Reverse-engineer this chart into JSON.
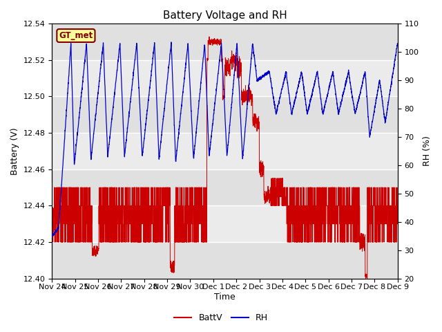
{
  "title": "Battery Voltage and RH",
  "xlabel": "Time",
  "ylabel_left": "Battery (V)",
  "ylabel_right": "RH (%)",
  "ylim_left": [
    12.4,
    12.54
  ],
  "ylim_right": [
    20,
    110
  ],
  "yticks_left": [
    12.4,
    12.42,
    12.44,
    12.46,
    12.48,
    12.5,
    12.52,
    12.54
  ],
  "yticks_right": [
    20,
    30,
    40,
    50,
    60,
    70,
    80,
    90,
    100,
    110
  ],
  "xtick_labels": [
    "Nov 24",
    "Nov 25",
    "Nov 26",
    "Nov 27",
    "Nov 28",
    "Nov 29",
    "Nov 30",
    "Dec 1",
    "Dec 2",
    "Dec 3",
    "Dec 4",
    "Dec 5",
    "Dec 6",
    "Dec 7",
    "Dec 8",
    "Dec 9"
  ],
  "battv_color": "#cc0000",
  "rh_color": "#0000cc",
  "bg_color": "#ffffff",
  "plot_bg_color": "#f0f0f0",
  "grid_color": "#ffffff",
  "legend_label_battv": "BattV",
  "legend_label_rh": "RH",
  "station_label": "GT_met",
  "station_label_color": "#800000",
  "station_box_color": "#ffff99",
  "title_fontsize": 11,
  "axis_fontsize": 9,
  "tick_fontsize": 8,
  "legend_fontsize": 9,
  "band_colors": [
    "#e8e8e8",
    "#d8d8d8"
  ],
  "rh_cycle_days": [
    0.0,
    0.3,
    0.85,
    1.0,
    1.55,
    1.75,
    2.3,
    2.5,
    3.05,
    3.25,
    3.8,
    4.05,
    4.6,
    4.8,
    5.35,
    5.55,
    6.1,
    6.35,
    6.85,
    7.05,
    7.6,
    7.85,
    8.3,
    8.55,
    9.0,
    9.2,
    9.75,
    10.05,
    10.5,
    10.75,
    11.2,
    11.45,
    11.9,
    12.15,
    12.6,
    12.85,
    13.3,
    13.6,
    14.05,
    14.25,
    14.7,
    14.95,
    15.5
  ],
  "rh_values": [
    35,
    38,
    103,
    60,
    103,
    62,
    103,
    63,
    103,
    63,
    103,
    63,
    103,
    62,
    103,
    61,
    103,
    62,
    103,
    63,
    103,
    63,
    103,
    62,
    103,
    90,
    93,
    78,
    93,
    78,
    93,
    78,
    93,
    78,
    93,
    78,
    93,
    78,
    93,
    70,
    90,
    75,
    103
  ]
}
